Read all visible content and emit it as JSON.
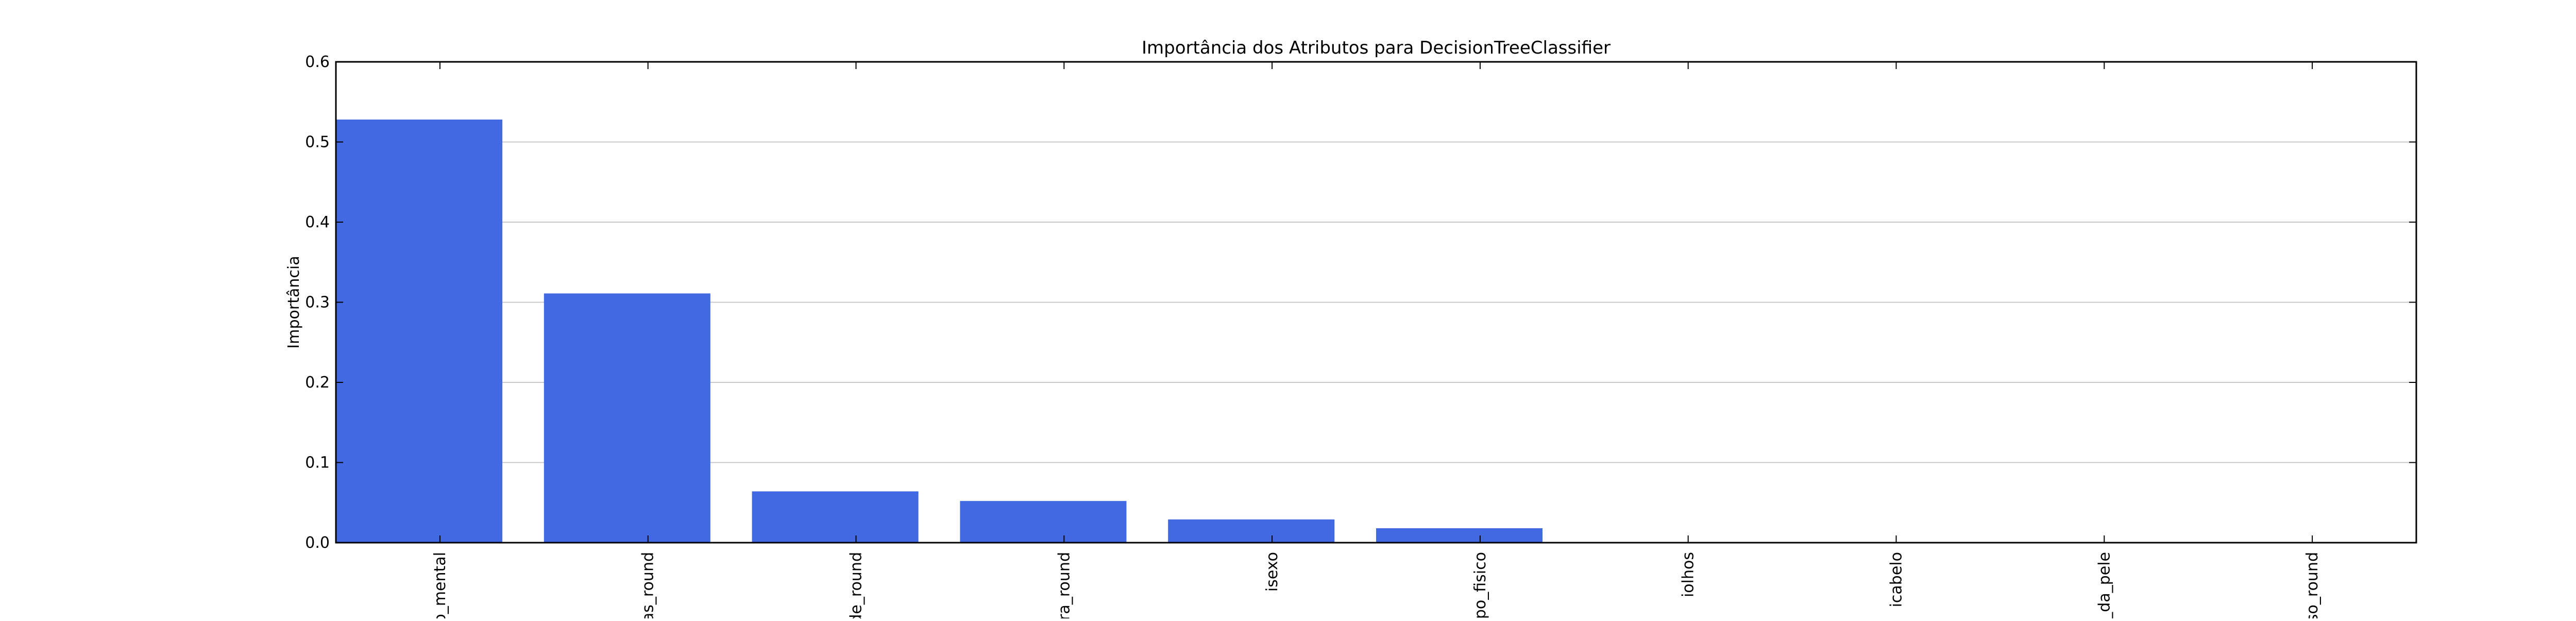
{
  "chart_data": {
    "type": "bar",
    "title": "Importância dos Atributos para DecisionTreeClassifier",
    "xlabel": "",
    "ylabel": "Importância",
    "categories": [
      "o_mental",
      "ias_round",
      "de_round",
      "ura_round",
      "isexo",
      "tipo_fisico",
      "iolhos",
      "icabelo",
      "r_da_pele",
      "eso_round"
    ],
    "values": [
      0.528,
      0.311,
      0.064,
      0.052,
      0.029,
      0.018,
      0.0,
      0.0,
      0.0,
      0.0
    ],
    "ylim": [
      0,
      0.6
    ],
    "yticks": [
      "0.0",
      "0.1",
      "0.2",
      "0.3",
      "0.4",
      "0.5",
      "0.6"
    ],
    "grid": "horizontal",
    "bar_color": "#4169e1"
  }
}
